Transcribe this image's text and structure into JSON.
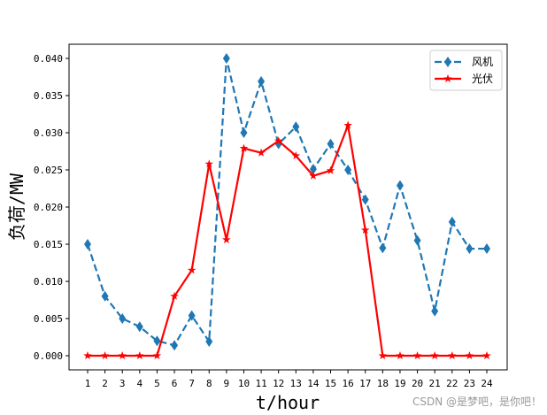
{
  "chart_data": {
    "type": "line",
    "title": "",
    "xlabel": "t/hour",
    "ylabel": "负荷/MW",
    "x": [
      1,
      2,
      3,
      4,
      5,
      6,
      7,
      8,
      9,
      10,
      11,
      12,
      13,
      14,
      15,
      16,
      17,
      18,
      19,
      20,
      21,
      22,
      23,
      24
    ],
    "ylim": [
      -0.002,
      0.042
    ],
    "yticks": [
      "0.000",
      "0.005",
      "0.010",
      "0.015",
      "0.020",
      "0.025",
      "0.030",
      "0.035",
      "0.040"
    ],
    "legend_position": "top-right",
    "grid": false,
    "series": [
      {
        "name": "风机",
        "color": "#1f77b4",
        "style": "dashed",
        "marker": "diamond",
        "values": [
          0.015,
          0.008,
          0.005,
          0.0039,
          0.002,
          0.0014,
          0.0054,
          0.0019,
          0.04,
          0.03,
          0.0369,
          0.0285,
          0.0308,
          0.0251,
          0.0285,
          0.025,
          0.021,
          0.0145,
          0.0229,
          0.0155,
          0.006,
          0.018,
          0.0144,
          0.0144
        ]
      },
      {
        "name": "光伏",
        "color": "#ff0000",
        "style": "solid",
        "marker": "star",
        "values": [
          0,
          0,
          0,
          0,
          0,
          0.008,
          0.0115,
          0.0258,
          0.0156,
          0.0279,
          0.0273,
          0.0289,
          0.0269,
          0.0242,
          0.0249,
          0.031,
          0.0169,
          0,
          0,
          0,
          0,
          0,
          0,
          0
        ]
      }
    ]
  },
  "watermark": "CSDN @是梦吧，是你吧！"
}
